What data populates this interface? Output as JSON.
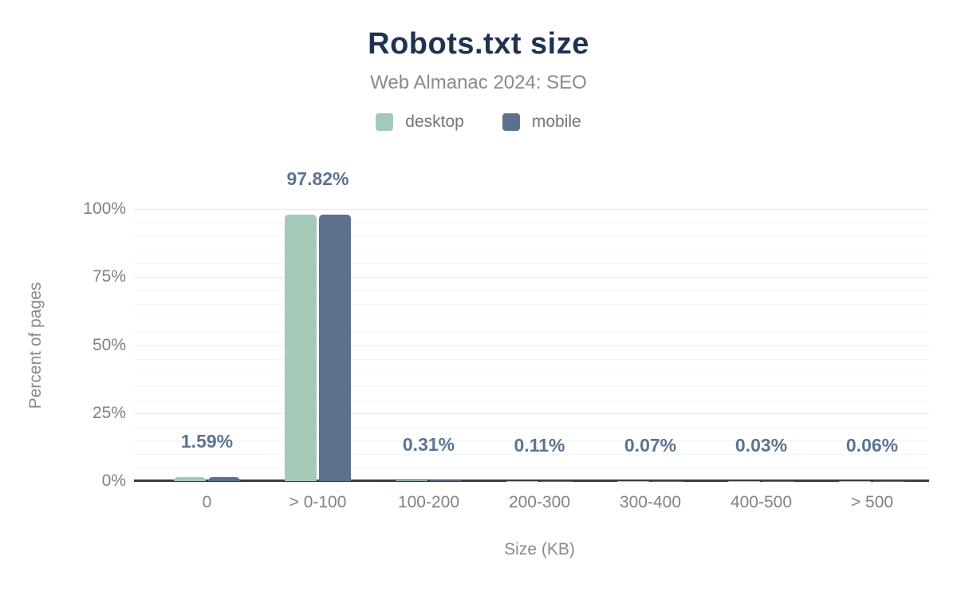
{
  "header": {
    "title": "Robots.txt size",
    "subtitle": "Web Almanac 2024: SEO"
  },
  "legend": {
    "items": [
      {
        "label": "desktop",
        "color": "#a4c9b6"
      },
      {
        "label": "mobile",
        "color": "#5e708c"
      }
    ]
  },
  "colors": {
    "title_text": "#1f3251",
    "subtitle_text": "#8a8a8a",
    "axis_text": "#808080",
    "data_label_text": "#5b7492",
    "axis_line": "#3d3d3d",
    "grid_minor": "#f4f4f4",
    "grid_major": "#ebebeb",
    "desktop_bar": "#a4c9b6",
    "mobile_bar": "#5e708c",
    "background": "#ffffff"
  },
  "chart_data": {
    "type": "bar",
    "title": "Robots.txt size",
    "subtitle": "Web Almanac 2024: SEO",
    "categories": [
      "0",
      "> 0-100",
      "100-200",
      "200-300",
      "300-400",
      "400-500",
      "> 500"
    ],
    "series": [
      {
        "name": "desktop",
        "color": "#a4c9b6",
        "values": [
          1.59,
          97.82,
          0.31,
          0.11,
          0.07,
          0.03,
          0.06
        ]
      },
      {
        "name": "mobile",
        "color": "#5e708c",
        "values": [
          1.59,
          97.82,
          0.31,
          0.11,
          0.07,
          0.03,
          0.06
        ]
      }
    ],
    "data_labels": [
      "1.59%",
      "97.82%",
      "0.31%",
      "0.11%",
      "0.07%",
      "0.03%",
      "0.06%"
    ],
    "xlabel": "Size (KB)",
    "ylabel": "Percent of pages",
    "ylim": [
      0,
      100
    ],
    "yticks": [
      {
        "value": 0,
        "label": "0%"
      },
      {
        "value": 25,
        "label": "25%"
      },
      {
        "value": 50,
        "label": "50%"
      },
      {
        "value": 75,
        "label": "75%"
      },
      {
        "value": 100,
        "label": "100%"
      }
    ],
    "grid": {
      "minor_step": 5,
      "major_step": 25,
      "grid_on": true
    },
    "legend_position": "top"
  }
}
